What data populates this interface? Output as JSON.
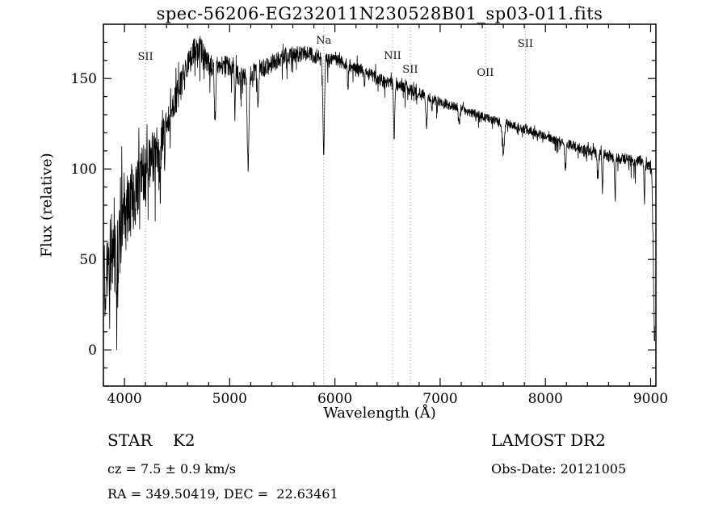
{
  "chart_data": {
    "type": "line",
    "title": "spec-56206-EG232011N230528B01_sp03-011.fits",
    "xlabel": "Wavelength (Å)",
    "ylabel": "Flux (relative)",
    "xlim": [
      3800,
      9050
    ],
    "ylim": [
      -20,
      180
    ],
    "xticks": [
      4000,
      5000,
      6000,
      7000,
      8000,
      9000
    ],
    "yticks": [
      0,
      50,
      100,
      150
    ],
    "x_minor_step": 200,
    "y_minor_step": 10,
    "line_color": "#000000",
    "marker_line_color": "#999999",
    "grid": false,
    "legend": "none",
    "spectral_markers": [
      {
        "label": "SII",
        "wavelength": 4200,
        "label_dy": 44
      },
      {
        "label": "Na",
        "wavelength": 5893,
        "label_dy": 24
      },
      {
        "label": "NII",
        "wavelength": 6548,
        "label_dy": 43
      },
      {
        "label": "SII",
        "wavelength": 6716,
        "label_dy": 60
      },
      {
        "label": "OII",
        "wavelength": 7430,
        "label_dy": 64
      },
      {
        "label": "SII",
        "wavelength": 7810,
        "label_dy": 28
      }
    ],
    "continuum": [
      [
        3800,
        32
      ],
      [
        3850,
        48
      ],
      [
        3900,
        55
      ],
      [
        3950,
        62
      ],
      [
        4000,
        70
      ],
      [
        4060,
        82
      ],
      [
        4120,
        92
      ],
      [
        4180,
        98
      ],
      [
        4240,
        104
      ],
      [
        4300,
        108
      ],
      [
        4360,
        120
      ],
      [
        4420,
        130
      ],
      [
        4480,
        138
      ],
      [
        4540,
        146
      ],
      [
        4600,
        157
      ],
      [
        4660,
        166
      ],
      [
        4720,
        167
      ],
      [
        4780,
        160
      ],
      [
        4840,
        156
      ],
      [
        4900,
        157
      ],
      [
        4960,
        158
      ],
      [
        5020,
        155
      ],
      [
        5080,
        152
      ],
      [
        5140,
        151
      ],
      [
        5200,
        152
      ],
      [
        5300,
        155
      ],
      [
        5400,
        158
      ],
      [
        5500,
        162
      ],
      [
        5600,
        163
      ],
      [
        5700,
        164
      ],
      [
        5800,
        163
      ],
      [
        5900,
        160
      ],
      [
        6000,
        160
      ],
      [
        6100,
        158
      ],
      [
        6200,
        156
      ],
      [
        6300,
        153
      ],
      [
        6400,
        150
      ],
      [
        6500,
        148
      ],
      [
        6600,
        146
      ],
      [
        6700,
        144
      ],
      [
        6800,
        142
      ],
      [
        6900,
        139
      ],
      [
        7000,
        137
      ],
      [
        7100,
        135
      ],
      [
        7200,
        133
      ],
      [
        7300,
        131
      ],
      [
        7400,
        129
      ],
      [
        7500,
        127
      ],
      [
        7600,
        126
      ],
      [
        7700,
        124
      ],
      [
        7800,
        122
      ],
      [
        7900,
        120
      ],
      [
        8000,
        118
      ],
      [
        8100,
        116
      ],
      [
        8200,
        114
      ],
      [
        8300,
        112
      ],
      [
        8400,
        110
      ],
      [
        8500,
        109
      ],
      [
        8600,
        107
      ],
      [
        8700,
        106
      ],
      [
        8800,
        105
      ],
      [
        8900,
        104
      ],
      [
        8960,
        103
      ],
      [
        9000,
        101
      ],
      [
        9012,
        96
      ],
      [
        9022,
        60
      ],
      [
        9032,
        20
      ],
      [
        9040,
        4
      ]
    ],
    "absorption_lines": [
      [
        3933,
        25,
        6
      ],
      [
        4101,
        18,
        5
      ],
      [
        4226,
        22,
        4
      ],
      [
        4340,
        22,
        5
      ],
      [
        4383,
        18,
        4
      ],
      [
        4861,
        30,
        6
      ],
      [
        5050,
        22,
        4
      ],
      [
        5175,
        50,
        8
      ],
      [
        5270,
        20,
        6
      ],
      [
        5893,
        52,
        7
      ],
      [
        6122,
        12,
        5
      ],
      [
        6280,
        10,
        4
      ],
      [
        6563,
        28,
        5
      ],
      [
        6870,
        16,
        7
      ],
      [
        7180,
        8,
        8
      ],
      [
        7600,
        18,
        10
      ],
      [
        8190,
        14,
        7
      ],
      [
        8498,
        16,
        5
      ],
      [
        8542,
        22,
        5
      ],
      [
        8662,
        20,
        5
      ],
      [
        8940,
        22,
        4
      ]
    ],
    "noise_profile": [
      [
        3800,
        26
      ],
      [
        3950,
        24
      ],
      [
        4100,
        20
      ],
      [
        4300,
        14
      ],
      [
        4500,
        9
      ],
      [
        4700,
        7
      ],
      [
        5000,
        5.5
      ],
      [
        5500,
        5
      ],
      [
        6000,
        4
      ],
      [
        6500,
        3.5
      ],
      [
        7000,
        3
      ],
      [
        7500,
        2.5
      ],
      [
        8000,
        2.5
      ],
      [
        8600,
        3
      ],
      [
        9000,
        4
      ]
    ],
    "noise_seed": 20121005,
    "sample_step": 2.5
  },
  "footer": {
    "object_class": "STAR    K2",
    "survey": "LAMOST DR2",
    "cz": "cz = 7.5 ± 0.9 km/s",
    "obs_date": "Obs-Date: 20121005",
    "coordinates": "RA = 349.50419, DEC =  22.63461"
  }
}
